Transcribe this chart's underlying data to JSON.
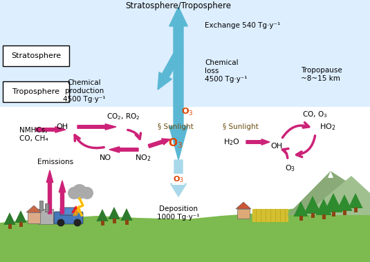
{
  "arrow_blue": "#5bb8d4",
  "arrow_blue_light": "#a8d8ea",
  "arrow_pink": "#cc2277",
  "o3_red": "#dd4400",
  "ground_color": "#7dba4f",
  "sky_color": "#ddeeff",
  "strat_trop_label": "Stratosphere/Troposphere",
  "exchange_label": "Exchange 540 Tg·y⁻¹",
  "chem_loss_l1": "Chemical",
  "chem_loss_l2": "loss",
  "chem_loss_l3": "4500 Tg·y⁻¹",
  "tropopause_label": "Tropopause\n~8~15 km",
  "stratosphere_label": "Stratosphere",
  "troposphere_label": "Troposphere",
  "chem_prod_l1": "Chemical",
  "chem_prod_l2": "production",
  "chem_prod_l3": "4500 Tg·y⁻¹",
  "deposition_l1": "Deposition",
  "deposition_l2": "1000 Tg·y⁻¹",
  "emissions_label": "Emissions",
  "nmhcs_label": "NMHCs,\nCO, CH₄",
  "oh_label": "OH",
  "co2ro2_label": "CO₂, RO₂",
  "sunlight_label": "Sunlight",
  "no2_label": "NO₂",
  "no_label": "NO",
  "o3_label": "O₃",
  "h2o_label": "H₂O",
  "oh2_label": "OH",
  "ho2_label": "HO₂",
  "co_o3_label": "CO, O₃",
  "o3b_label": "O₃"
}
